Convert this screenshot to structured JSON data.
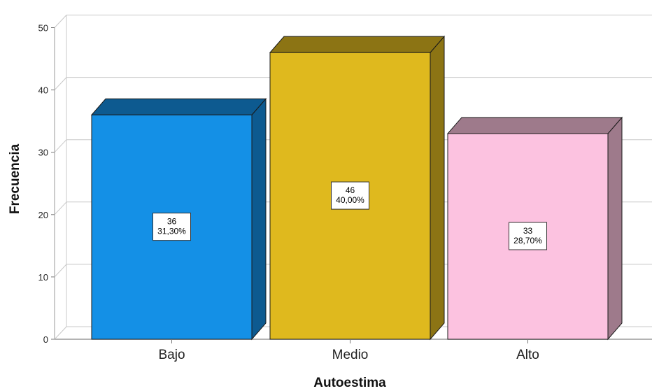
{
  "chart_data": {
    "type": "bar",
    "style": "3d",
    "xlabel": "Autoestima",
    "ylabel": "Frecuencia",
    "ylim": [
      0,
      50
    ],
    "yticks": [
      "0",
      "10",
      "20",
      "30",
      "40",
      "50"
    ],
    "grid": true,
    "categories": [
      "Bajo",
      "Medio",
      "Alto"
    ],
    "values": [
      36,
      46,
      33
    ],
    "percent_labels": [
      "31,30%",
      "40,00%",
      "28,70%"
    ],
    "value_labels": [
      "36",
      "46",
      "33"
    ],
    "colors": {
      "front": [
        "#1490E6",
        "#DFB91E",
        "#FCC2E0"
      ],
      "top": [
        "#0D5A90",
        "#8C7414",
        "#9E7A8B"
      ],
      "side": [
        "#0D5A90",
        "#8C7414",
        "#9E7A8B"
      ]
    }
  }
}
